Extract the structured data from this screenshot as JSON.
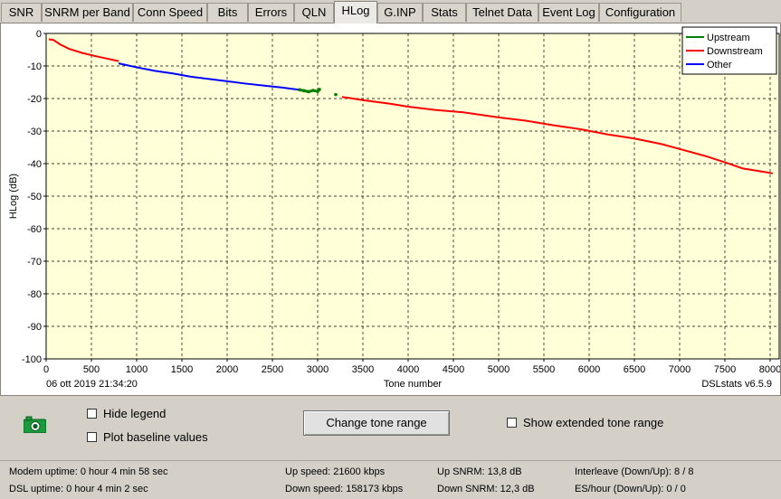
{
  "tabs": [
    {
      "label": "SNR",
      "active": false
    },
    {
      "label": "SNRM per Band",
      "active": false
    },
    {
      "label": "Conn Speed",
      "active": false
    },
    {
      "label": "Bits",
      "active": false
    },
    {
      "label": "Errors",
      "active": false
    },
    {
      "label": "QLN",
      "active": false
    },
    {
      "label": "HLog",
      "active": true
    },
    {
      "label": "G.INP",
      "active": false
    },
    {
      "label": "Stats",
      "active": false
    },
    {
      "label": "Telnet Data",
      "active": false
    },
    {
      "label": "Event Log",
      "active": false
    },
    {
      "label": "Configuration",
      "active": false
    }
  ],
  "chart_data": {
    "type": "line",
    "ylabel": "HLog (dB)",
    "xlabel": "Tone number",
    "timestamp": "06 ott 2019 21:34:20",
    "version": "DSLstats v6.5.9",
    "xlim": [
      0,
      8100
    ],
    "ylim": [
      -100,
      0
    ],
    "x_ticks": [
      0,
      500,
      1000,
      1500,
      2000,
      2500,
      3000,
      3500,
      4000,
      4500,
      5000,
      5500,
      6000,
      6500,
      7000,
      7500,
      8000
    ],
    "y_ticks": [
      0,
      -10,
      -20,
      -30,
      -40,
      -50,
      -60,
      -70,
      -80,
      -90,
      -100
    ],
    "grid": true,
    "legend_position": "top-right",
    "series": [
      {
        "name": "Upstream",
        "color": "#008000",
        "x": [
          2800,
          2850,
          2900,
          2950,
          3000,
          3020,
          3200
        ],
        "y": [
          -17.3,
          -17.6,
          -17.9,
          -17.5,
          -17.8,
          -17.2,
          -18.8
        ]
      },
      {
        "name": "Downstream",
        "color": "#ff0000",
        "x": [
          30,
          80,
          150,
          250,
          400,
          550,
          700,
          800,
          3270,
          3500,
          3800,
          4000,
          4300,
          4600,
          5000,
          5300,
          5600,
          5900,
          6200,
          6500,
          6800,
          7000,
          7300,
          7500,
          7700,
          7900,
          8030
        ],
        "y": [
          -1.8,
          -2.0,
          -3.3,
          -4.7,
          -6.0,
          -7.0,
          -7.9,
          -8.5,
          -19.5,
          -20.5,
          -21.6,
          -22.5,
          -23.5,
          -24.2,
          -25.8,
          -26.8,
          -28.2,
          -29.4,
          -31.0,
          -32.3,
          -34.0,
          -35.5,
          -37.8,
          -39.6,
          -41.5,
          -42.4,
          -43.0
        ]
      },
      {
        "name": "Other",
        "color": "#0000ff",
        "x": [
          800,
          1000,
          1200,
          1400,
          1600,
          1800,
          2000,
          2200,
          2400,
          2600,
          2790
        ],
        "y": [
          -9.2,
          -10.4,
          -11.5,
          -12.3,
          -13.3,
          -14.0,
          -14.7,
          -15.4,
          -16.0,
          -16.6,
          -17.3
        ]
      }
    ]
  },
  "legend": {
    "items": [
      "Upstream",
      "Downstream",
      "Other"
    ]
  },
  "controls": {
    "hide_legend": "Hide legend",
    "plot_baseline": "Plot baseline values",
    "change_tone_range": "Change tone range",
    "show_extended": "Show extended tone range"
  },
  "status": {
    "modem_uptime": "Modem uptime:  0 hour 4 min 58 sec",
    "dsl_uptime": "DSL uptime:  0 hour 4 min 2 sec",
    "up_speed": "Up speed: 21600 kbps",
    "down_speed": "Down speed: 158173 kbps",
    "up_snrm": "Up SNRM: 13,8 dB",
    "down_snrm": "Down SNRM: 12,3 dB",
    "interleave": "Interleave (Down/Up): 8 / 8",
    "es_hour": "ES/hour (Down/Up): 0 / 0"
  },
  "colors": {
    "plot_bg": "#ffffd8",
    "grid": "#000000"
  }
}
